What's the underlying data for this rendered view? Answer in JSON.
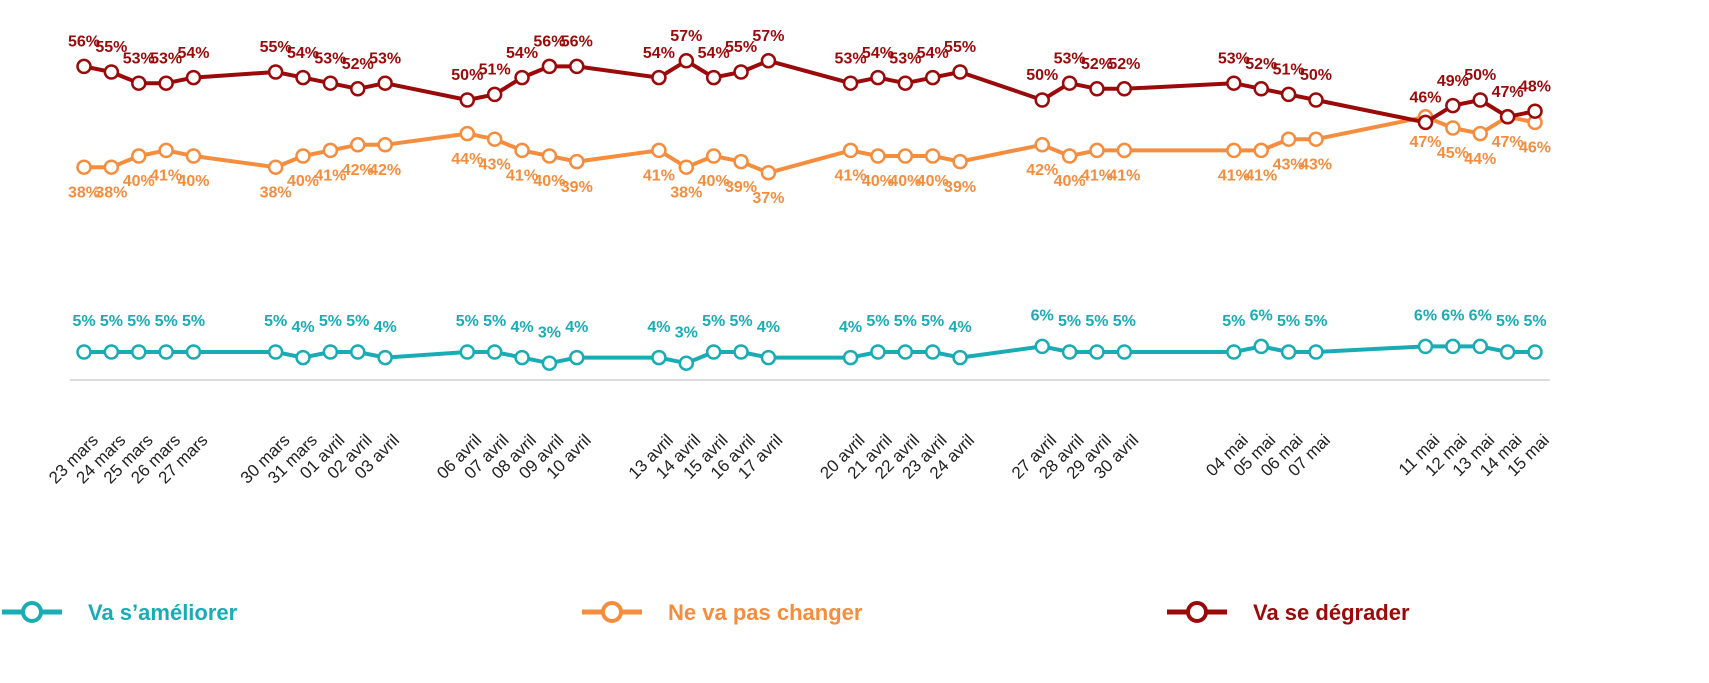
{
  "chart_data": {
    "type": "line",
    "categories": [
      "23 mars",
      "24 mars",
      "25 mars",
      "26 mars",
      "27 mars",
      "30 mars",
      "31 mars",
      "01 avril",
      "02 avril",
      "03 avril",
      "06 avril",
      "07 avril",
      "08 avril",
      "09 avril",
      "10 avril",
      "13 avril",
      "14 avril",
      "15 avril",
      "16 avril",
      "17 avril",
      "20 avril",
      "21 avril",
      "22 avril",
      "23 avril",
      "24 avril",
      "27 avril",
      "28 avril",
      "29 avril",
      "30 avril",
      "04 mai",
      "05 mai",
      "06 mai",
      "07 mai",
      "11 mai",
      "12 mai",
      "13 mai",
      "14 mai",
      "15 mai"
    ],
    "ylim": [
      0,
      60
    ],
    "series": [
      {
        "name": "Va s’améliorer",
        "color": "#1aacb5",
        "values": [
          5,
          5,
          5,
          5,
          5,
          5,
          4,
          5,
          5,
          4,
          5,
          5,
          4,
          3,
          4,
          4,
          3,
          5,
          5,
          4,
          4,
          5,
          5,
          5,
          4,
          6,
          5,
          5,
          5,
          5,
          6,
          5,
          5,
          6,
          6,
          6,
          5,
          5
        ],
        "value_labels": [
          "5%",
          "5%",
          "5%",
          "5%",
          "5%",
          "5%",
          "4%",
          "5%",
          "5%",
          "4%",
          "5%",
          "5%",
          "4%",
          "3%",
          "4%",
          "4%",
          "3%",
          "5%",
          "5%",
          "4%",
          "4%",
          "5%",
          "5%",
          "5%",
          "4%",
          "6%",
          "5%",
          "5%",
          "5%",
          "5%",
          "6%",
          "5%",
          "5%",
          "6%",
          "6%",
          "6%",
          "5%",
          "5%"
        ]
      },
      {
        "name": "Ne va pas changer",
        "color": "#f58d3f",
        "values": [
          38,
          38,
          40,
          41,
          40,
          38,
          40,
          41,
          42,
          42,
          44,
          43,
          41,
          40,
          39,
          41,
          38,
          40,
          39,
          37,
          41,
          40,
          40,
          40,
          39,
          42,
          40,
          41,
          41,
          41,
          41,
          43,
          43,
          47,
          45,
          44,
          47,
          46
        ],
        "value_labels": [
          "38%",
          "38%",
          "40%",
          "41%",
          "40%",
          "38%",
          "40%",
          "41%",
          "42%",
          "42%",
          "44%",
          "43%",
          "41%",
          "40%",
          "39%",
          "41%",
          "38%",
          "40%",
          "39%",
          "37%",
          "41%",
          "40%",
          "40%",
          "40%",
          "39%",
          "42%",
          "40%",
          "41%",
          "41%",
          "41%",
          "41%",
          "43%",
          "43%",
          "47%",
          "45%",
          "44%",
          "47%",
          "46%"
        ]
      },
      {
        "name": "Va se dégrader",
        "color": "#9b0a0a",
        "values": [
          56,
          55,
          53,
          53,
          54,
          55,
          54,
          53,
          52,
          53,
          50,
          51,
          54,
          56,
          56,
          54,
          57,
          54,
          55,
          57,
          53,
          54,
          53,
          54,
          55,
          50,
          53,
          52,
          52,
          53,
          52,
          51,
          50,
          46,
          49,
          50,
          47,
          48
        ],
        "value_labels": [
          "56%",
          "55%",
          "53%",
          "53%",
          "54%",
          "55%",
          "54%",
          "53%",
          "52%",
          "53%",
          "50%",
          "51%",
          "54%",
          "56%",
          "56%",
          "54%",
          "57%",
          "54%",
          "55%",
          "57%",
          "53%",
          "54%",
          "53%",
          "54%",
          "55%",
          "50%",
          "53%",
          "52%",
          "52%",
          "53%",
          "52%",
          "51%",
          "50%",
          "46%",
          "49%",
          "50%",
          "47%",
          "48%"
        ]
      }
    ]
  }
}
